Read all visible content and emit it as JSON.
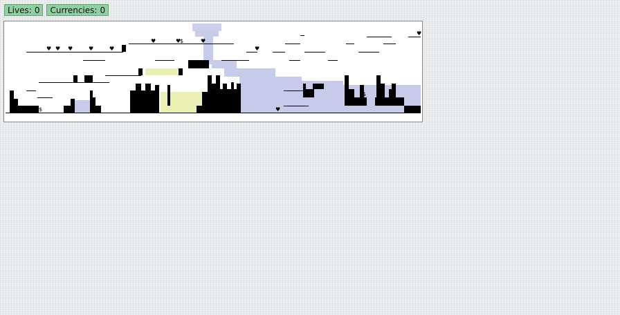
{
  "hud": {
    "lives_label": "Lives:",
    "lives_value": "0",
    "currencies_label": "Currencies:",
    "currencies_value": "0"
  },
  "glyphs": {
    "heart": "♥",
    "currency": "$"
  },
  "colors": {
    "hud_badge": "#8fd19e",
    "terrain": "#000000",
    "water": "#c7cbea",
    "sand": "#ecefb4"
  }
}
